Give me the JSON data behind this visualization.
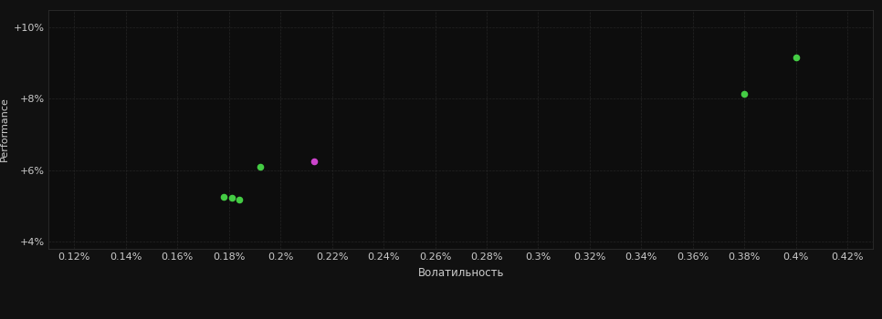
{
  "background_color": "#111111",
  "plot_bg_color": "#0d0d0d",
  "grid_color": "#2a2a2a",
  "text_color": "#cccccc",
  "xlabel": "Волатильность",
  "ylabel": "Performance",
  "xlim": [
    0.0011,
    0.0043
  ],
  "ylim": [
    0.038,
    0.105
  ],
  "xtick_vals": [
    0.0012,
    0.0014,
    0.0016,
    0.0018,
    0.002,
    0.0022,
    0.0024,
    0.0026,
    0.0028,
    0.003,
    0.0032,
    0.0034,
    0.0036,
    0.0038,
    0.004,
    0.0042
  ],
  "xtick_labels": [
    "0.12%",
    "0.14%",
    "0.16%",
    "0.18%",
    "0.2%",
    "0.22%",
    "0.24%",
    "0.26%",
    "0.28%",
    "0.3%",
    "0.32%",
    "0.34%",
    "0.36%",
    "0.38%",
    "0.4%",
    "0.42%"
  ],
  "yticks": [
    0.04,
    0.06,
    0.08,
    0.1
  ],
  "points_green": [
    [
      0.00178,
      0.0525
    ],
    [
      0.00181,
      0.0522
    ],
    [
      0.00184,
      0.0518
    ],
    [
      0.00192,
      0.061
    ],
    [
      0.0038,
      0.0815
    ],
    [
      0.004,
      0.0915
    ]
  ],
  "points_magenta": [
    [
      0.00213,
      0.0625
    ]
  ],
  "point_color_green": "#44cc44",
  "point_color_magenta": "#cc44cc",
  "point_size": 20,
  "dpi": 100,
  "figsize": [
    9.66,
    3.5
  ]
}
